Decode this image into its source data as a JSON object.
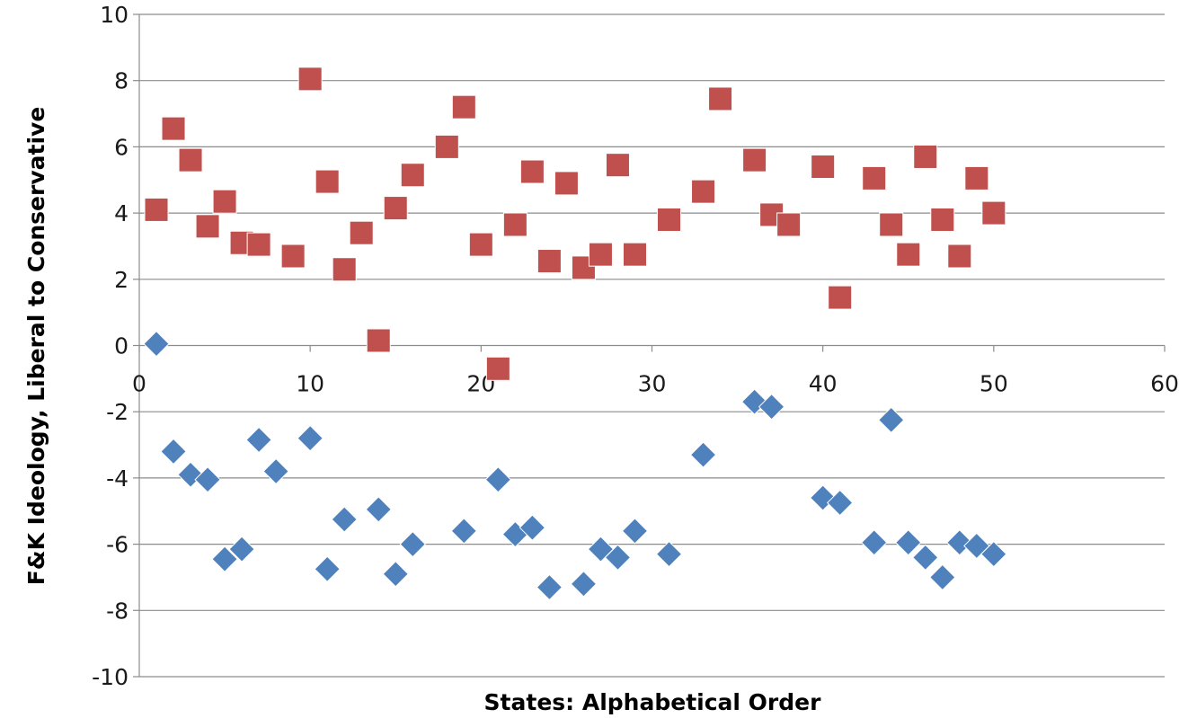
{
  "chart_data": {
    "type": "scatter",
    "title": "",
    "xlabel": "States: Alphabetical Order",
    "ylabel": "F&K Ideology, Liberal to Conservative",
    "xlim": [
      0,
      60
    ],
    "ylim": [
      -10,
      10
    ],
    "x_ticks": [
      0,
      10,
      20,
      30,
      40,
      50,
      60
    ],
    "y_ticks": [
      -10,
      -8,
      -6,
      -4,
      -2,
      0,
      2,
      4,
      6,
      8,
      10
    ],
    "grid": "horizontal",
    "legend": "none",
    "series": [
      {
        "marker": "square",
        "color": "#c0504d",
        "points": [
          [
            1,
            4.1
          ],
          [
            2,
            6.55
          ],
          [
            3,
            5.6
          ],
          [
            4,
            3.6
          ],
          [
            5,
            4.35
          ],
          [
            6,
            3.1
          ],
          [
            7,
            3.05
          ],
          [
            9,
            2.7
          ],
          [
            10,
            8.05
          ],
          [
            11,
            4.95
          ],
          [
            12,
            2.3
          ],
          [
            13,
            3.4
          ],
          [
            14,
            0.15
          ],
          [
            15,
            4.15
          ],
          [
            16,
            5.15
          ],
          [
            18,
            6.0
          ],
          [
            19,
            7.2
          ],
          [
            20,
            3.05
          ],
          [
            21,
            -0.7
          ],
          [
            22,
            3.65
          ],
          [
            23,
            5.25
          ],
          [
            24,
            2.55
          ],
          [
            25,
            4.9
          ],
          [
            26,
            2.35
          ],
          [
            27,
            2.75
          ],
          [
            28,
            5.45
          ],
          [
            29,
            2.75
          ],
          [
            31,
            3.8
          ],
          [
            33,
            4.65
          ],
          [
            34,
            7.45
          ],
          [
            36,
            5.6
          ],
          [
            37,
            3.95
          ],
          [
            38,
            3.65
          ],
          [
            40,
            5.4
          ],
          [
            41,
            1.45
          ],
          [
            43,
            5.05
          ],
          [
            44,
            3.65
          ],
          [
            45,
            2.75
          ],
          [
            46,
            5.7
          ],
          [
            47,
            3.8
          ],
          [
            48,
            2.7
          ],
          [
            49,
            5.05
          ],
          [
            50,
            4.0
          ]
        ]
      },
      {
        "marker": "diamond",
        "color": "#4f81bd",
        "points": [
          [
            1,
            0.05
          ],
          [
            2,
            -3.2
          ],
          [
            3,
            -3.9
          ],
          [
            4,
            -4.05
          ],
          [
            5,
            -6.45
          ],
          [
            6,
            -6.15
          ],
          [
            7,
            -2.85
          ],
          [
            8,
            -3.8
          ],
          [
            10,
            -2.8
          ],
          [
            11,
            -6.75
          ],
          [
            12,
            -5.25
          ],
          [
            14,
            -4.95
          ],
          [
            15,
            -6.9
          ],
          [
            16,
            -6.0
          ],
          [
            19,
            -5.6
          ],
          [
            21,
            -4.05
          ],
          [
            22,
            -5.7
          ],
          [
            23,
            -5.5
          ],
          [
            24,
            -7.3
          ],
          [
            26,
            -7.2
          ],
          [
            27,
            -6.15
          ],
          [
            28,
            -6.4
          ],
          [
            29,
            -5.6
          ],
          [
            31,
            -6.3
          ],
          [
            33,
            -3.3
          ],
          [
            36,
            -1.7
          ],
          [
            37,
            -1.85
          ],
          [
            40,
            -4.6
          ],
          [
            41,
            -4.75
          ],
          [
            43,
            -5.95
          ],
          [
            44,
            -2.25
          ],
          [
            45,
            -5.95
          ],
          [
            46,
            -6.4
          ],
          [
            47,
            -7.0
          ],
          [
            48,
            -5.95
          ],
          [
            49,
            -6.05
          ],
          [
            50,
            -6.3
          ]
        ]
      }
    ]
  }
}
